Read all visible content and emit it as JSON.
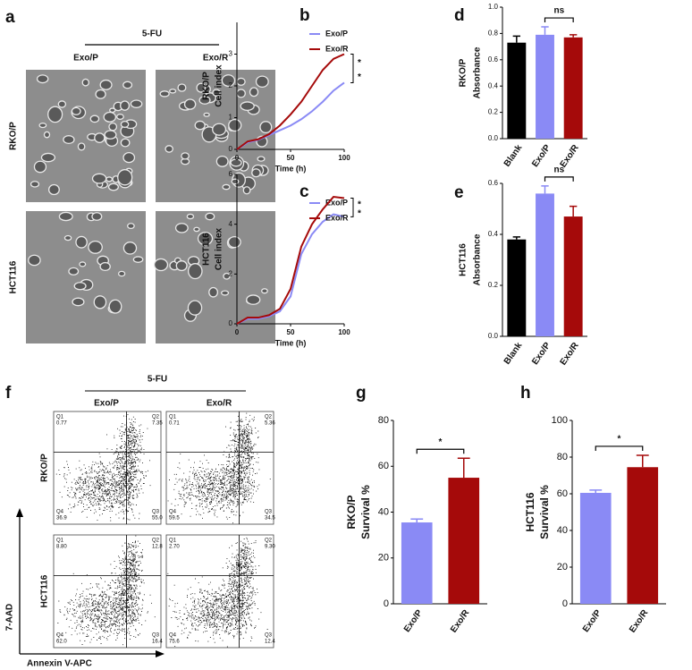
{
  "panel_a": {
    "letter": "a",
    "treatment": "5-FU",
    "columns": [
      "Exo/P",
      "Exo/R"
    ],
    "rows": [
      "RKO/P",
      "HCT116"
    ]
  },
  "panel_f": {
    "letter": "f",
    "treatment": "5-FU",
    "columns": [
      "Exo/P",
      "Exo/R"
    ],
    "rows": [
      "RKO/P",
      "HCT116"
    ],
    "y_axis": "7-AAD",
    "x_axis": "Annexin V-APC",
    "plots": [
      [
        {
          "name": "Q1",
          "value": "0.77"
        },
        {
          "name": "Q2",
          "value": "7.35"
        },
        {
          "name": "Q3",
          "value": "55.0"
        },
        {
          "name": "Q4",
          "value": "36.9"
        }
      ],
      [
        {
          "name": "Q1",
          "value": "0.71"
        },
        {
          "name": "Q2",
          "value": "5.36"
        },
        {
          "name": "Q3",
          "value": "34.5"
        },
        {
          "name": "Q4",
          "value": "59.5"
        }
      ],
      [
        {
          "name": "Q1",
          "value": "8.80"
        },
        {
          "name": "Q2",
          "value": "12.8"
        },
        {
          "name": "Q3",
          "value": "16.4"
        },
        {
          "name": "Q4",
          "value": "62.0"
        }
      ],
      [
        {
          "name": "Q1",
          "value": "2.70"
        },
        {
          "name": "Q2",
          "value": "9.30"
        },
        {
          "name": "Q3",
          "value": "12.4"
        },
        {
          "name": "Q4",
          "value": "75.6"
        }
      ]
    ]
  },
  "chart_data": [
    {
      "type": "line",
      "panel": "b",
      "group": "RKO/P",
      "ylabel": "Cell index",
      "xlabel": "Time (h)",
      "x": [
        0,
        10,
        20,
        30,
        40,
        50,
        60,
        70,
        80,
        90,
        100
      ],
      "xlim": [
        0,
        100
      ],
      "xticks": [
        0,
        50,
        100
      ],
      "ylim": [
        0,
        4
      ],
      "yticks": [
        0,
        1,
        2,
        3
      ],
      "series": [
        {
          "name": "Exo/P",
          "color": "#8a8af5",
          "values": [
            0,
            0.22,
            0.3,
            0.45,
            0.6,
            0.75,
            0.95,
            1.2,
            1.5,
            1.85,
            2.1
          ]
        },
        {
          "name": "Exo/R",
          "color": "#a50a0a",
          "values": [
            0,
            0.25,
            0.32,
            0.48,
            0.75,
            1.1,
            1.5,
            2.0,
            2.5,
            2.85,
            3.0
          ]
        }
      ],
      "annotations": [
        "*",
        "*"
      ]
    },
    {
      "type": "line",
      "panel": "c",
      "group": "HCT116",
      "ylabel": "Cell index",
      "xlabel": "Time (h)",
      "x": [
        0,
        10,
        20,
        30,
        40,
        50,
        60,
        70,
        80,
        90,
        100
      ],
      "xlim": [
        0,
        100
      ],
      "xticks": [
        0,
        50,
        100
      ],
      "ylim": [
        0,
        6
      ],
      "yticks": [
        0,
        2,
        4,
        6
      ],
      "series": [
        {
          "name": "Exo/P",
          "color": "#8a8af5",
          "values": [
            0,
            0.2,
            0.2,
            0.3,
            0.5,
            1.1,
            2.8,
            3.6,
            4.1,
            4.4,
            4.3
          ]
        },
        {
          "name": "Exo/R",
          "color": "#a50a0a",
          "values": [
            0,
            0.25,
            0.25,
            0.35,
            0.6,
            1.4,
            3.1,
            4.0,
            4.6,
            5.1,
            5.05
          ]
        }
      ],
      "annotations": [
        "*",
        "*"
      ]
    },
    {
      "type": "bar",
      "panel": "d",
      "group": "RKO/P",
      "ylabel": "Absorbance",
      "categories": [
        "Blank",
        "Exo/P",
        "Exo/R"
      ],
      "values": [
        0.73,
        0.79,
        0.77
      ],
      "errors": [
        0.05,
        0.06,
        0.02
      ],
      "colors": [
        "#000000",
        "#8a8af5",
        "#a50a0a"
      ],
      "ylim": [
        0,
        1.0
      ],
      "yticks": [
        {
          "value": 0,
          "label": "0.0"
        },
        {
          "value": 0.2,
          "label": "0.2"
        },
        {
          "value": 0.4,
          "label": "0.4"
        },
        {
          "value": 0.6,
          "label": "0.6"
        },
        {
          "value": 0.8,
          "label": "0.8"
        },
        {
          "value": 1.0,
          "label": "1.0"
        }
      ],
      "annotation": "ns"
    },
    {
      "type": "bar",
      "panel": "e",
      "group": "HCT116",
      "ylabel": "Absorbance",
      "categories": [
        "Blank",
        "Exo/P",
        "Exo/R"
      ],
      "values": [
        0.38,
        0.56,
        0.47
      ],
      "errors": [
        0.01,
        0.03,
        0.04
      ],
      "colors": [
        "#000000",
        "#8a8af5",
        "#a50a0a"
      ],
      "ylim": [
        0,
        0.6
      ],
      "yticks": [
        {
          "value": 0,
          "label": "0.0"
        },
        {
          "value": 0.2,
          "label": "0.2"
        },
        {
          "value": 0.4,
          "label": "0.4"
        },
        {
          "value": 0.6,
          "label": "0.6"
        }
      ],
      "annotation": "ns"
    },
    {
      "type": "bar",
      "panel": "g",
      "group": "RKO/P",
      "ylabel": "Survival %",
      "categories": [
        "Exo/P",
        "Exo/R"
      ],
      "values": [
        35.5,
        55
      ],
      "errors": [
        1.5,
        8.5
      ],
      "colors": [
        "#8a8af5",
        "#a50a0a"
      ],
      "ylim": [
        0,
        80
      ],
      "yticks": [
        0,
        20,
        40,
        60,
        80
      ],
      "annotation": "*"
    },
    {
      "type": "bar",
      "panel": "h",
      "group": "HCT116",
      "ylabel": "Survival %",
      "categories": [
        "Exo/P",
        "Exo/R"
      ],
      "values": [
        60.5,
        74.5
      ],
      "errors": [
        1.5,
        6.5
      ],
      "colors": [
        "#8a8af5",
        "#a50a0a"
      ],
      "ylim": [
        0,
        100
      ],
      "yticks": [
        0,
        20,
        40,
        60,
        80,
        100
      ],
      "annotation": "*"
    }
  ]
}
